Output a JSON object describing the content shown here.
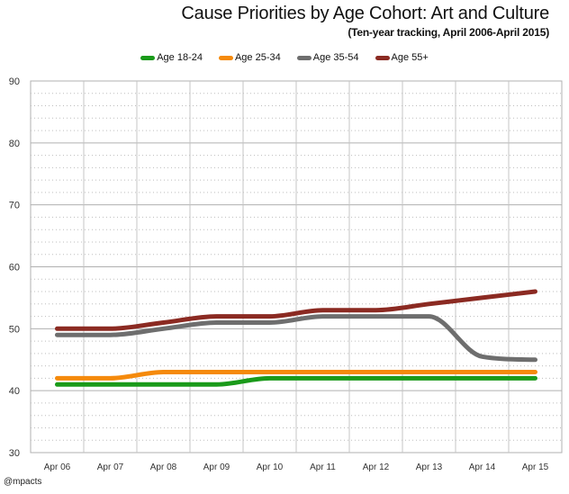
{
  "chart_data": {
    "type": "line",
    "title": "Cause Priorities by Age Cohort: Art and Culture",
    "subtitle": "(Ten-year tracking, April 2006-April 2015)",
    "categories": [
      "Apr 06",
      "Apr 07",
      "Apr 08",
      "Apr 09",
      "Apr 10",
      "Apr 11",
      "Apr 12",
      "Apr 13",
      "Apr 14",
      "Apr 15"
    ],
    "ylim": [
      30,
      90
    ],
    "yticks": [
      30,
      40,
      50,
      60,
      70,
      80,
      90
    ],
    "grid": true,
    "legend_position": "top",
    "series": [
      {
        "name": "Age 18-24",
        "color": "#1a9a1a",
        "values": [
          41,
          41,
          41,
          41,
          42,
          42,
          42,
          42,
          42,
          42
        ]
      },
      {
        "name": "Age 25-34",
        "color": "#f58a0c",
        "values": [
          42,
          42,
          43,
          43,
          43,
          43,
          43,
          43,
          43,
          43
        ]
      },
      {
        "name": "Age 35-54",
        "color": "#6e6e6e",
        "values": [
          49,
          49,
          50,
          51,
          51,
          52,
          52,
          52,
          45.5,
          45
        ]
      },
      {
        "name": "Age 55+",
        "color": "#8b2a22",
        "values": [
          50,
          50,
          51,
          52,
          52,
          53,
          53,
          54,
          55,
          56
        ]
      }
    ]
  },
  "footer": {
    "credit": "@mpacts"
  }
}
